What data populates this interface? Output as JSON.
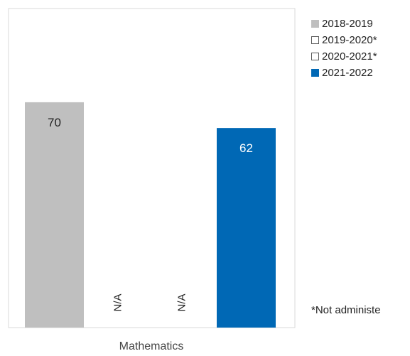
{
  "chart_data": {
    "type": "bar",
    "categories": [
      "Mathematics"
    ],
    "series": [
      {
        "name": "2018-2019",
        "value": 70,
        "label": "70",
        "color": "#bfbfbf",
        "label_color": "#222222",
        "outline": false
      },
      {
        "name": "2019-2020*",
        "value": null,
        "label": "N/A",
        "color": "#ffffff",
        "label_color": "#222222",
        "outline": true
      },
      {
        "name": "2020-2021*",
        "value": null,
        "label": "N/A",
        "color": "#ffffff",
        "label_color": "#222222",
        "outline": true
      },
      {
        "name": "2021-2022",
        "value": 62,
        "label": "62",
        "color": "#0068b5",
        "label_color": "#ffffff",
        "outline": false
      }
    ],
    "ylim": [
      0,
      100
    ],
    "grid": false,
    "legend_position": "right",
    "footnote": "*Not administe"
  }
}
